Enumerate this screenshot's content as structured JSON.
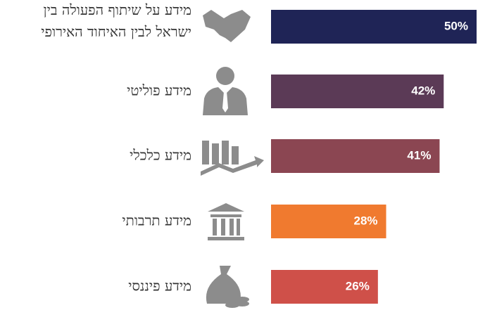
{
  "chart_data": {
    "type": "bar",
    "orientation": "horizontal",
    "categories": [
      [
        "מידע על שיתוף הפעולה בין",
        "ישראל לבין האיחוד האירופי"
      ],
      [
        "מידע פוליטי"
      ],
      [
        "מידע כלכלי"
      ],
      [
        "מידע תרבותי"
      ],
      [
        "מידע פיננסי"
      ]
    ],
    "values": [
      50,
      42,
      41,
      28,
      26
    ],
    "value_labels": [
      "50%",
      "42%",
      "41%",
      "28%",
      "26%"
    ],
    "colors": [
      "#1f2456",
      "#5b3a56",
      "#8b4652",
      "#f07a2f",
      "#cf5049"
    ]
  }
}
